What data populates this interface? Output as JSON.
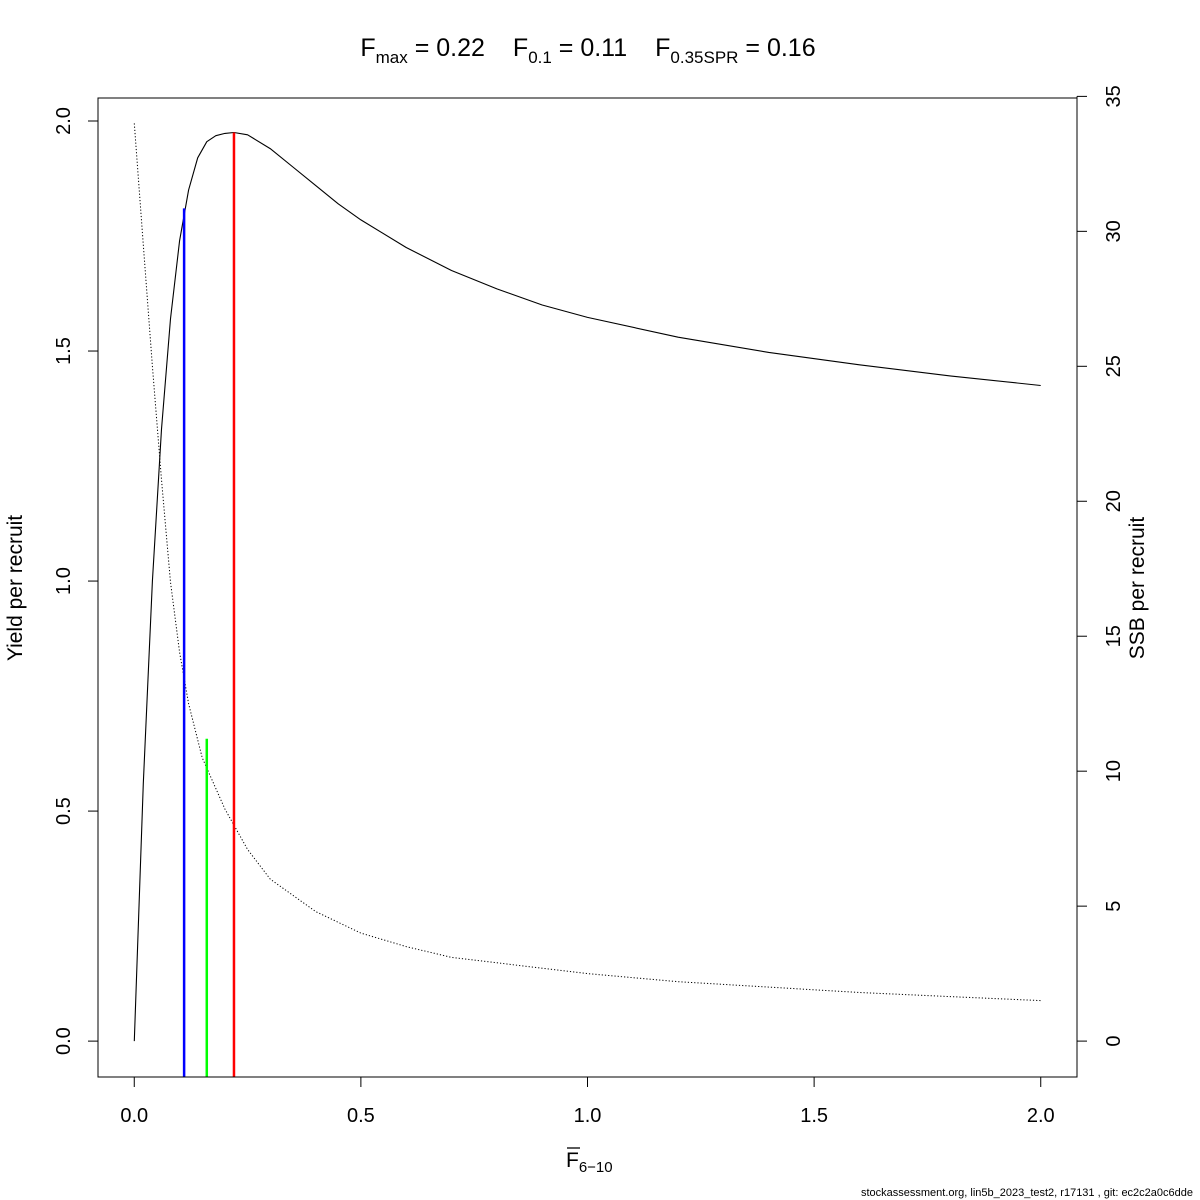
{
  "chart_data": {
    "type": "line",
    "title": {
      "parts": [
        {
          "base": "F",
          "sub": "max",
          "value": " = 0.22"
        },
        {
          "base": "F",
          "sub": "0.1",
          "value": " = 0.11"
        },
        {
          "base": "F",
          "sub": "0.35SPR",
          "value": " = 0.16"
        }
      ]
    },
    "xlabel": {
      "base": "F",
      "sub": "6−10",
      "overline": true
    },
    "ylabel_left": "Yield per recruit",
    "ylabel_right": "SSB per recruit",
    "xlim": [
      -0.08,
      2.08
    ],
    "ylim_left": [
      -0.078,
      2.05
    ],
    "ylim_right": [
      -1.33,
      34.94
    ],
    "x_ticks": [
      "0.0",
      "0.5",
      "1.0",
      "1.5",
      "2.0"
    ],
    "y_left_ticks": [
      "0.0",
      "0.5",
      "1.0",
      "1.5",
      "2.0"
    ],
    "y_right_ticks": [
      "0",
      "5",
      "10",
      "15",
      "20",
      "25",
      "30",
      "35"
    ],
    "grid": false,
    "series": [
      {
        "axis": "left",
        "style": "solid",
        "color": "#000000",
        "x": [
          0,
          0.02,
          0.04,
          0.06,
          0.08,
          0.1,
          0.12,
          0.14,
          0.16,
          0.18,
          0.2,
          0.22,
          0.25,
          0.3,
          0.35,
          0.4,
          0.45,
          0.5,
          0.6,
          0.7,
          0.8,
          0.9,
          1.0,
          1.2,
          1.4,
          1.6,
          1.8,
          2.0
        ],
        "y": [
          0.0,
          0.56,
          1.0,
          1.33,
          1.57,
          1.74,
          1.85,
          1.92,
          1.955,
          1.968,
          1.973,
          1.975,
          1.97,
          1.94,
          1.9,
          1.86,
          1.82,
          1.785,
          1.725,
          1.675,
          1.635,
          1.6,
          1.573,
          1.53,
          1.497,
          1.47,
          1.446,
          1.425
        ]
      },
      {
        "axis": "right",
        "style": "dotted",
        "color": "#000000",
        "x": [
          0,
          0.02,
          0.04,
          0.06,
          0.08,
          0.1,
          0.12,
          0.15,
          0.2,
          0.25,
          0.3,
          0.4,
          0.5,
          0.6,
          0.7,
          0.8,
          1.0,
          1.2,
          1.4,
          1.6,
          1.8,
          2.0
        ],
        "y": [
          34.0,
          29.5,
          25.0,
          20.8,
          17.0,
          14.4,
          12.5,
          10.5,
          8.6,
          7.1,
          6.0,
          4.8,
          4.0,
          3.5,
          3.1,
          2.9,
          2.5,
          2.2,
          2.0,
          1.8,
          1.65,
          1.5
        ]
      }
    ],
    "reference_lines": [
      {
        "name": "F0.1",
        "x": 0.11,
        "y": 1.81,
        "axis": "left",
        "color": "#0000ff"
      },
      {
        "name": "F0.35SPR",
        "x": 0.16,
        "y": 11.2,
        "axis": "right",
        "color": "#00ff00"
      },
      {
        "name": "Fmax",
        "x": 0.22,
        "y": 1.975,
        "axis": "left",
        "color": "#ff0000"
      }
    ]
  },
  "footer": "stockassessment.org, lin5b_2023_test2, r17131 , git: ec2c2a0c6dde"
}
